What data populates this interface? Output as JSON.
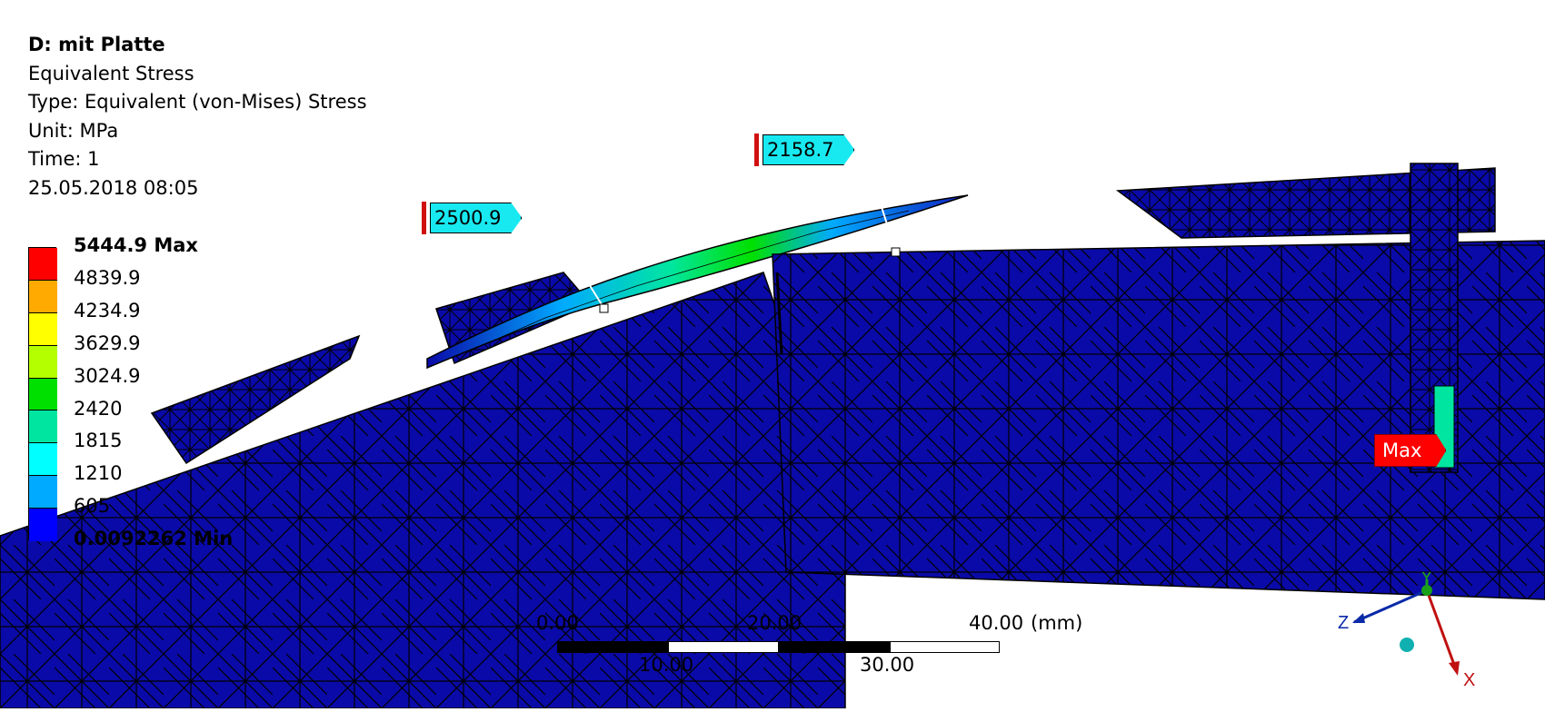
{
  "header": {
    "title": "D: mit Platte",
    "result_name": "Equivalent Stress",
    "type": "Type: Equivalent (von-Mises) Stress",
    "unit": "Unit: MPa",
    "time": "Time: 1",
    "timestamp": "25.05.2018 08:05"
  },
  "legend": {
    "labels": [
      "5444.9 Max",
      "4839.9",
      "4234.9",
      "3629.9",
      "3024.9",
      "2420",
      "1815",
      "1210",
      "605",
      "0.0092262 Min"
    ],
    "colors": [
      "#ff0000",
      "#ffaa00",
      "#ffff00",
      "#b4ff00",
      "#00e000",
      "#00e6a0",
      "#00ffff",
      "#00aaff",
      "#0000ff"
    ]
  },
  "probes": {
    "p1": "2500.9",
    "p2": "2158.7",
    "max_label": "Max"
  },
  "scale_bar": {
    "top_labels": [
      "0.00",
      "20.00",
      "40.00"
    ],
    "unit": "(mm)",
    "bottom_labels": [
      "10.00",
      "30.00"
    ]
  },
  "triad": {
    "x": "X",
    "y": "Y",
    "z": "Z"
  },
  "colors": {
    "mesh_fill": "#0a0aa8",
    "mesh_line": "#000000",
    "probe_fill": "#18e9f0",
    "max_fill": "#ff0000"
  }
}
